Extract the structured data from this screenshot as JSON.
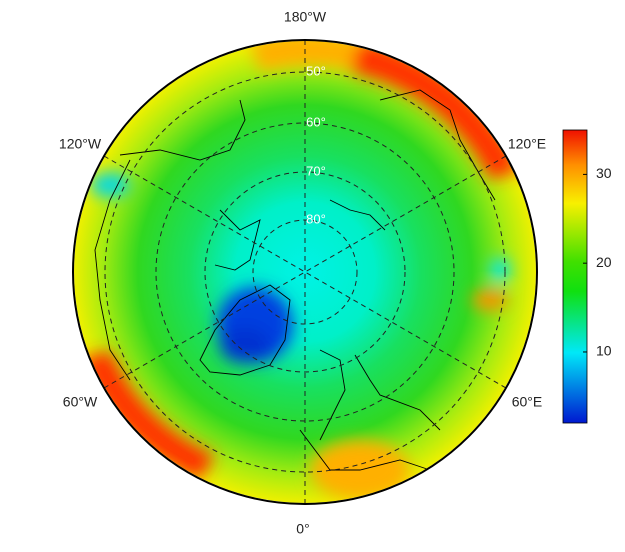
{
  "map": {
    "lon_labels": [
      "180°W",
      "120°E",
      "60°E",
      "0°",
      "60°W",
      "120°W"
    ],
    "lat_labels": [
      "50°",
      "60°",
      "70°",
      "80°"
    ]
  },
  "colorbar": {
    "ylim": [
      2,
      35
    ],
    "yticks": [
      10,
      20,
      30
    ]
  }
}
